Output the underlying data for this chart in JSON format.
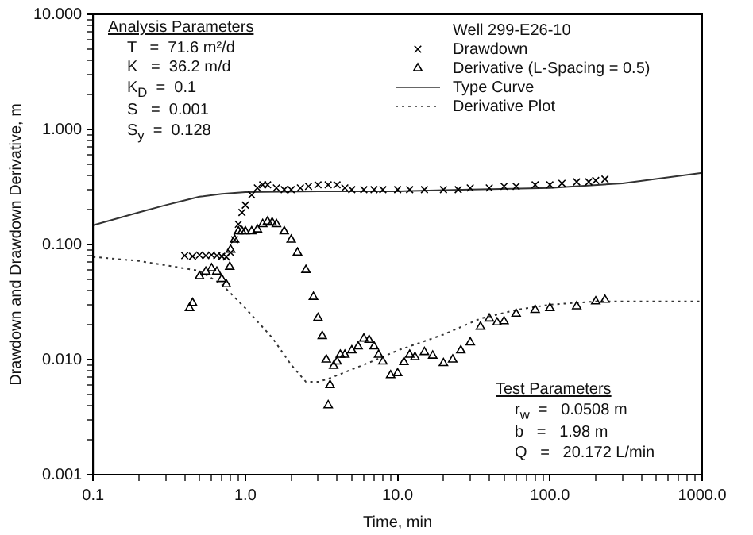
{
  "chart_data": {
    "type": "scatter",
    "xlabel": "Time, min",
    "ylabel": "Drawdown and Drawdown Derivative, m",
    "legend_title": "Well 299-E26-10",
    "legend": "top right",
    "log": "xy",
    "grid": false,
    "xlim": [
      0.1,
      1000
    ],
    "ylim": [
      0.001,
      10
    ],
    "xticks": [
      {
        "value": 0.1,
        "label": "0.1"
      },
      {
        "value": 0.2,
        "label": null
      },
      {
        "value": 0.3,
        "label": null
      },
      {
        "value": 0.4,
        "label": null
      },
      {
        "value": 0.5,
        "label": null
      },
      {
        "value": 0.6,
        "label": null
      },
      {
        "value": 0.7,
        "label": null
      },
      {
        "value": 0.8,
        "label": null
      },
      {
        "value": 0.9,
        "label": null
      },
      {
        "value": 1,
        "label": "1.0"
      },
      {
        "value": 2,
        "label": null
      },
      {
        "value": 3,
        "label": null
      },
      {
        "value": 4,
        "label": null
      },
      {
        "value": 5,
        "label": null
      },
      {
        "value": 6,
        "label": null
      },
      {
        "value": 7,
        "label": null
      },
      {
        "value": 8,
        "label": null
      },
      {
        "value": 9,
        "label": null
      },
      {
        "value": 10,
        "label": "10.0"
      },
      {
        "value": 20,
        "label": null
      },
      {
        "value": 30,
        "label": null
      },
      {
        "value": 40,
        "label": null
      },
      {
        "value": 50,
        "label": null
      },
      {
        "value": 60,
        "label": null
      },
      {
        "value": 70,
        "label": null
      },
      {
        "value": 80,
        "label": null
      },
      {
        "value": 90,
        "label": null
      },
      {
        "value": 100,
        "label": "100.0"
      },
      {
        "value": 200,
        "label": null
      },
      {
        "value": 300,
        "label": null
      },
      {
        "value": 400,
        "label": null
      },
      {
        "value": 500,
        "label": null
      },
      {
        "value": 600,
        "label": null
      },
      {
        "value": 700,
        "label": null
      },
      {
        "value": 800,
        "label": null
      },
      {
        "value": 900,
        "label": null
      },
      {
        "value": 1000,
        "label": "1000.0"
      }
    ],
    "yticks": [
      {
        "value": 0.001,
        "label": "0.001"
      },
      {
        "value": 0.002,
        "label": null
      },
      {
        "value": 0.003,
        "label": null
      },
      {
        "value": 0.004,
        "label": null
      },
      {
        "value": 0.005,
        "label": null
      },
      {
        "value": 0.006,
        "label": null
      },
      {
        "value": 0.007,
        "label": null
      },
      {
        "value": 0.008,
        "label": null
      },
      {
        "value": 0.009,
        "label": null
      },
      {
        "value": 0.01,
        "label": "0.010"
      },
      {
        "value": 0.02,
        "label": null
      },
      {
        "value": 0.03,
        "label": null
      },
      {
        "value": 0.04,
        "label": null
      },
      {
        "value": 0.05,
        "label": null
      },
      {
        "value": 0.06,
        "label": null
      },
      {
        "value": 0.07,
        "label": null
      },
      {
        "value": 0.08,
        "label": null
      },
      {
        "value": 0.09,
        "label": null
      },
      {
        "value": 0.1,
        "label": "0.100"
      },
      {
        "value": 0.2,
        "label": null
      },
      {
        "value": 0.3,
        "label": null
      },
      {
        "value": 0.4,
        "label": null
      },
      {
        "value": 0.5,
        "label": null
      },
      {
        "value": 0.6,
        "label": null
      },
      {
        "value": 0.7,
        "label": null
      },
      {
        "value": 0.8,
        "label": null
      },
      {
        "value": 0.9,
        "label": null
      },
      {
        "value": 1,
        "label": "1.000"
      },
      {
        "value": 2,
        "label": null
      },
      {
        "value": 3,
        "label": null
      },
      {
        "value": 4,
        "label": null
      },
      {
        "value": 5,
        "label": null
      },
      {
        "value": 6,
        "label": null
      },
      {
        "value": 7,
        "label": null
      },
      {
        "value": 8,
        "label": null
      },
      {
        "value": 9,
        "label": null
      },
      {
        "value": 10,
        "label": "10.000"
      }
    ],
    "series": [
      {
        "name": "Drawdown",
        "marker": "cross",
        "color": "#000000",
        "x": [
          0.4,
          0.45,
          0.5,
          0.55,
          0.6,
          0.65,
          0.7,
          0.75,
          0.8,
          0.85,
          0.9,
          0.95,
          1.0,
          1.1,
          1.2,
          1.3,
          1.4,
          1.6,
          1.8,
          2.0,
          2.3,
          2.6,
          3.0,
          3.5,
          4.0,
          4.5,
          5,
          6,
          7,
          8,
          10,
          12,
          15,
          20,
          25,
          30,
          40,
          50,
          60,
          80,
          100,
          120,
          150,
          180,
          200,
          230
        ],
        "values": [
          0.08,
          0.079,
          0.081,
          0.08,
          0.081,
          0.08,
          0.079,
          0.078,
          0.085,
          0.11,
          0.15,
          0.19,
          0.22,
          0.27,
          0.31,
          0.33,
          0.33,
          0.31,
          0.3,
          0.3,
          0.31,
          0.32,
          0.33,
          0.33,
          0.33,
          0.31,
          0.3,
          0.3,
          0.3,
          0.3,
          0.3,
          0.3,
          0.3,
          0.3,
          0.3,
          0.31,
          0.31,
          0.32,
          0.32,
          0.33,
          0.33,
          0.34,
          0.35,
          0.35,
          0.36,
          0.37
        ]
      },
      {
        "name": "Derivative (L-Spacing = 0.5)",
        "marker": "triangle",
        "color": "#000000",
        "x": [
          0.43,
          0.45,
          0.5,
          0.55,
          0.6,
          0.65,
          0.7,
          0.75,
          0.79,
          0.8,
          0.85,
          0.9,
          0.95,
          1.0,
          1.1,
          1.2,
          1.3,
          1.4,
          1.5,
          1.6,
          1.8,
          2.0,
          2.2,
          2.5,
          2.8,
          3.0,
          3.2,
          3.4,
          3.5,
          3.6,
          3.8,
          4.0,
          4.2,
          4.5,
          5,
          5.5,
          6,
          6.5,
          7,
          7.5,
          8,
          9,
          10,
          11,
          12,
          13,
          15,
          17,
          20,
          23,
          26,
          30,
          35,
          40,
          45,
          50,
          60,
          80,
          100,
          150,
          200,
          230
        ],
        "values": [
          0.028,
          0.031,
          0.053,
          0.058,
          0.062,
          0.058,
          0.05,
          0.045,
          0.064,
          0.09,
          0.11,
          0.13,
          0.13,
          0.13,
          0.13,
          0.135,
          0.15,
          0.158,
          0.155,
          0.15,
          0.13,
          0.11,
          0.085,
          0.06,
          0.035,
          0.023,
          0.016,
          0.01,
          0.004,
          0.006,
          0.0088,
          0.0096,
          0.011,
          0.011,
          0.012,
          0.013,
          0.0152,
          0.0148,
          0.013,
          0.011,
          0.0096,
          0.0073,
          0.0076,
          0.0095,
          0.011,
          0.0105,
          0.0116,
          0.0108,
          0.0093,
          0.01,
          0.012,
          0.0141,
          0.0193,
          0.0227,
          0.021,
          0.0215,
          0.025,
          0.027,
          0.028,
          0.029,
          0.032,
          0.033
        ]
      },
      {
        "name": "Type Curve",
        "type": "line",
        "marker": "none",
        "line_style": "solid",
        "color": "#333333",
        "x": [
          0.1,
          0.2,
          0.3,
          0.5,
          0.7,
          1,
          3,
          10,
          30,
          100,
          300,
          1000
        ],
        "values": [
          0.147,
          0.19,
          0.22,
          0.26,
          0.275,
          0.285,
          0.29,
          0.29,
          0.3,
          0.31,
          0.34,
          0.42
        ]
      },
      {
        "name": "Derivative Plot",
        "type": "line",
        "marker": "none",
        "line_style": "dotted",
        "color": "#333333",
        "x": [
          0.1,
          0.2,
          0.3,
          0.5,
          0.7,
          1,
          1.5,
          2,
          2.5,
          3,
          3.5,
          5,
          7,
          10,
          20,
          35,
          60,
          100,
          200,
          400,
          1000
        ],
        "values": [
          0.078,
          0.072,
          0.066,
          0.059,
          0.045,
          0.028,
          0.0155,
          0.009,
          0.0064,
          0.0064,
          0.0068,
          0.0082,
          0.0098,
          0.012,
          0.0165,
          0.0227,
          0.027,
          0.03,
          0.032,
          0.032,
          0.032
        ]
      }
    ],
    "annotations": [
      "Analysis Parameters",
      "T   =  71.6 m²/d",
      "K   =  36.2 m/d",
      "K$_{D}$  =  0.1",
      "S   =  0.001",
      "S$_{y}$  =  0.128",
      "Test Parameters",
      "r$_{w}$  =   0.0508 m",
      "b   =   1.98 m",
      "Q   =   20.172 L/min"
    ]
  }
}
